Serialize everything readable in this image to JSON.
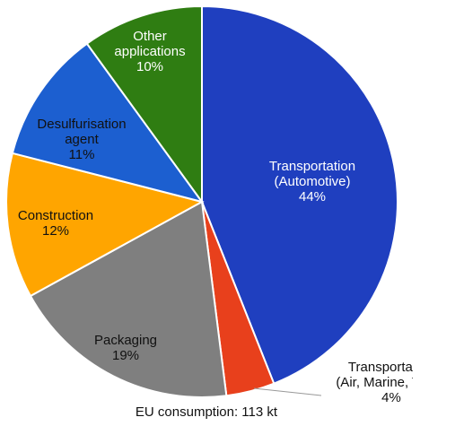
{
  "chart_data": {
    "type": "pie",
    "title": "",
    "slices": [
      {
        "label_lines": [
          "Transportation",
          "(Automotive)"
        ],
        "percent_label": "44%",
        "value": 44,
        "color": "#1f3fbf",
        "text_color": "#ffffff"
      },
      {
        "label_lines": [
          "Transportation",
          "(Air, Marine, Train)"
        ],
        "percent_label": "4%",
        "value": 4,
        "color": "#e8401c",
        "text_color": "#111111"
      },
      {
        "label_lines": [
          "Packaging"
        ],
        "percent_label": "19%",
        "value": 19,
        "color": "#7f7f7f",
        "text_color": "#111111"
      },
      {
        "label_lines": [
          "Construction"
        ],
        "percent_label": "12%",
        "value": 12,
        "color": "#ffa500",
        "text_color": "#111111"
      },
      {
        "label_lines": [
          "Desulfurisation",
          "agent"
        ],
        "percent_label": "11%",
        "value": 11,
        "color": "#1c5fd0",
        "text_color": "#111111"
      },
      {
        "label_lines": [
          "Other",
          "applications"
        ],
        "percent_label": "10%",
        "value": 10,
        "color": "#2f7d12",
        "text_color": "#ffffff"
      }
    ],
    "caption": "EU consumption: 113 kt"
  }
}
